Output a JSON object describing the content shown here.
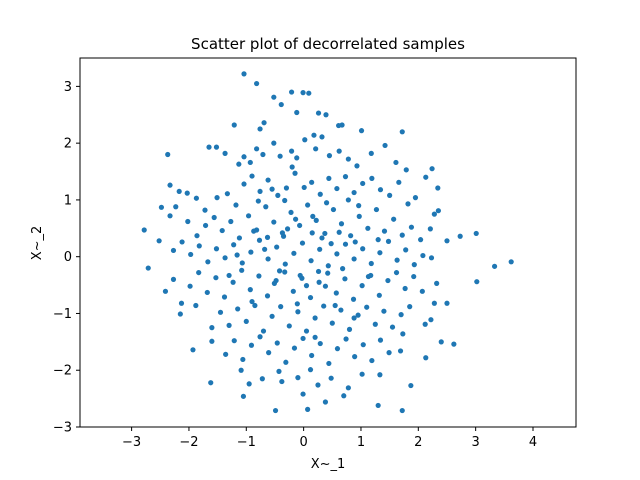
{
  "chart_data": {
    "type": "scatter",
    "title": "Scatter plot of decorrelated samples",
    "xlabel": "X~_1",
    "ylabel": "X~_2",
    "xlim": [
      -3.9,
      4.75
    ],
    "ylim": [
      -3.0,
      3.5
    ],
    "xticks": [
      -3,
      -2,
      -1,
      0,
      1,
      2,
      3,
      4
    ],
    "yticks": [
      -3,
      -2,
      -1,
      0,
      1,
      2,
      3
    ],
    "xtick_labels": [
      "−3",
      "−2",
      "−1",
      "0",
      "1",
      "2",
      "3",
      "4"
    ],
    "ytick_labels": [
      "−3",
      "−2",
      "−1",
      "0",
      "1",
      "2",
      "3"
    ],
    "grid": false,
    "marker_color": "#1f77b4",
    "series": [
      {
        "points": [
          [
            -1.04,
            3.22
          ],
          [
            -0.82,
            3.05
          ],
          [
            -0.52,
            2.81
          ],
          [
            -0.21,
            2.9
          ],
          [
            -0.01,
            2.89
          ],
          [
            0.09,
            2.88
          ],
          [
            -0.39,
            2.68
          ],
          [
            -0.12,
            2.54
          ],
          [
            0.26,
            2.53
          ],
          [
            0.39,
            2.5
          ],
          [
            0.67,
            2.32
          ],
          [
            0.61,
            2.31
          ],
          [
            -1.21,
            2.32
          ],
          [
            -0.69,
            2.36
          ],
          [
            -0.76,
            2.25
          ],
          [
            1.01,
            2.22
          ],
          [
            1.72,
            2.2
          ],
          [
            0.18,
            2.14
          ],
          [
            0.32,
            2.11
          ],
          [
            -1.65,
            1.93
          ],
          [
            -1.52,
            1.93
          ],
          [
            -1.37,
            1.82
          ],
          [
            -1.13,
            1.63
          ],
          [
            -1.04,
            1.76
          ],
          [
            -0.93,
            1.66
          ],
          [
            -0.82,
            1.9
          ],
          [
            -0.71,
            1.8
          ],
          [
            -0.52,
            2.0
          ],
          [
            -0.41,
            1.77
          ],
          [
            -0.21,
            1.86
          ],
          [
            -0.12,
            1.74
          ],
          [
            0.02,
            2.06
          ],
          [
            0.21,
            1.9
          ],
          [
            0.45,
            1.78
          ],
          [
            0.62,
            1.86
          ],
          [
            0.78,
            1.72
          ],
          [
            0.93,
            1.6
          ],
          [
            1.18,
            1.82
          ],
          [
            1.42,
            1.96
          ],
          [
            1.61,
            1.66
          ],
          [
            1.79,
            1.53
          ],
          [
            2.24,
            1.55
          ],
          [
            -2.37,
            1.8
          ],
          [
            -2.33,
            1.26
          ],
          [
            -2.17,
            1.15
          ],
          [
            -2.48,
            0.87
          ],
          [
            -2.23,
            0.88
          ],
          [
            -2.03,
            1.12
          ],
          [
            -1.87,
            1.03
          ],
          [
            -1.72,
            0.82
          ],
          [
            -1.51,
            1.04
          ],
          [
            -1.33,
            1.11
          ],
          [
            -1.18,
            0.91
          ],
          [
            -1.04,
            1.28
          ],
          [
            -0.9,
            1.42
          ],
          [
            -0.76,
            1.15
          ],
          [
            -0.62,
            1.35
          ],
          [
            -0.45,
            1.08
          ],
          [
            -0.3,
            1.21
          ],
          [
            -0.15,
            1.47
          ],
          [
            0.01,
            1.22
          ],
          [
            0.14,
            1.31
          ],
          [
            0.29,
            1.1
          ],
          [
            0.44,
            1.38
          ],
          [
            0.58,
            1.2
          ],
          [
            0.73,
            1.41
          ],
          [
            0.88,
            1.13
          ],
          [
            1.03,
            1.29
          ],
          [
            1.19,
            1.38
          ],
          [
            1.34,
            1.18
          ],
          [
            1.5,
            1.08
          ],
          [
            1.66,
            1.31
          ],
          [
            1.82,
            0.93
          ],
          [
            1.95,
            1.04
          ],
          [
            2.13,
            1.4
          ],
          [
            2.34,
            1.21
          ],
          [
            2.35,
            0.81
          ],
          [
            2.28,
            0.75
          ],
          [
            -2.33,
            0.72
          ],
          [
            -2.02,
            0.62
          ],
          [
            -1.86,
            0.37
          ],
          [
            -1.71,
            0.55
          ],
          [
            -1.56,
            0.69
          ],
          [
            -1.42,
            0.46
          ],
          [
            -1.27,
            0.62
          ],
          [
            -1.12,
            0.33
          ],
          [
            -0.96,
            0.72
          ],
          [
            -0.82,
            0.47
          ],
          [
            -0.66,
            0.88
          ],
          [
            -0.52,
            0.61
          ],
          [
            -0.37,
            0.42
          ],
          [
            -0.22,
            0.78
          ],
          [
            -0.07,
            0.55
          ],
          [
            0.07,
            0.91
          ],
          [
            0.22,
            0.64
          ],
          [
            0.37,
            0.41
          ],
          [
            0.52,
            0.83
          ],
          [
            0.66,
            0.58
          ],
          [
            0.82,
            0.37
          ],
          [
            0.97,
            0.71
          ],
          [
            1.12,
            0.5
          ],
          [
            1.27,
            0.83
          ],
          [
            1.41,
            0.45
          ],
          [
            1.57,
            0.66
          ],
          [
            1.72,
            0.38
          ],
          [
            1.88,
            0.52
          ],
          [
            2.04,
            0.3
          ],
          [
            2.21,
            0.49
          ],
          [
            -2.78,
            0.47
          ],
          [
            -2.52,
            0.28
          ],
          [
            -2.27,
            0.11
          ],
          [
            -2.12,
            0.26
          ],
          [
            -1.97,
            0.04
          ],
          [
            -1.82,
            0.19
          ],
          [
            -1.67,
            -0.09
          ],
          [
            -1.52,
            0.14
          ],
          [
            -1.37,
            -0.02
          ],
          [
            -1.22,
            0.21
          ],
          [
            -1.07,
            -0.11
          ],
          [
            -0.92,
            0.08
          ],
          [
            -0.77,
            0.29
          ],
          [
            -0.62,
            -0.04
          ],
          [
            -0.47,
            0.17
          ],
          [
            -0.32,
            -0.13
          ],
          [
            -0.17,
            0.06
          ],
          [
            -0.02,
            0.24
          ],
          [
            0.13,
            -0.07
          ],
          [
            0.28,
            0.13
          ],
          [
            0.43,
            -0.16
          ],
          [
            0.58,
            0.05
          ],
          [
            0.73,
            0.22
          ],
          [
            0.88,
            -0.04
          ],
          [
            1.03,
            0.14
          ],
          [
            1.18,
            -0.12
          ],
          [
            1.33,
            0.07
          ],
          [
            1.48,
            0.27
          ],
          [
            1.63,
            -0.06
          ],
          [
            1.78,
            0.12
          ],
          [
            1.93,
            -0.14
          ],
          [
            2.08,
            0.02
          ],
          [
            2.23,
            -0.02
          ],
          [
            2.5,
            0.28
          ],
          [
            2.73,
            0.36
          ],
          [
            3.01,
            0.41
          ],
          [
            -2.71,
            -0.2
          ],
          [
            -2.41,
            -0.61
          ],
          [
            -2.27,
            -0.4
          ],
          [
            -2.13,
            -0.82
          ],
          [
            -1.98,
            -0.52
          ],
          [
            -1.83,
            -0.28
          ],
          [
            -1.68,
            -0.63
          ],
          [
            -1.53,
            -0.37
          ],
          [
            -1.38,
            -0.71
          ],
          [
            -1.23,
            -0.45
          ],
          [
            -1.08,
            -0.24
          ],
          [
            -0.93,
            -0.58
          ],
          [
            -0.78,
            -0.34
          ],
          [
            -0.63,
            -0.69
          ],
          [
            -0.48,
            -0.42
          ],
          [
            -0.33,
            -0.27
          ],
          [
            -0.18,
            -0.61
          ],
          [
            -0.03,
            -0.38
          ],
          [
            0.12,
            -0.72
          ],
          [
            0.27,
            -0.45
          ],
          [
            0.42,
            -0.29
          ],
          [
            0.57,
            -0.64
          ],
          [
            0.72,
            -0.39
          ],
          [
            0.87,
            -0.75
          ],
          [
            1.02,
            -0.51
          ],
          [
            1.17,
            -0.33
          ],
          [
            1.32,
            -0.68
          ],
          [
            1.47,
            -0.42
          ],
          [
            1.62,
            -0.28
          ],
          [
            1.77,
            -0.56
          ],
          [
            1.92,
            -0.35
          ],
          [
            2.07,
            -0.61
          ],
          [
            2.32,
            -0.47
          ],
          [
            3.02,
            -0.44
          ],
          [
            3.33,
            -0.17
          ],
          [
            3.62,
            -0.09
          ],
          [
            -2.15,
            -1.01
          ],
          [
            -1.88,
            -0.86
          ],
          [
            -1.6,
            -1.25
          ],
          [
            -1.45,
            -0.98
          ],
          [
            -1.3,
            -1.21
          ],
          [
            -1.15,
            -0.92
          ],
          [
            -1.0,
            -1.14
          ],
          [
            -0.85,
            -0.86
          ],
          [
            -0.7,
            -1.31
          ],
          [
            -0.55,
            -1.05
          ],
          [
            -0.4,
            -0.88
          ],
          [
            -0.25,
            -1.22
          ],
          [
            -0.1,
            -0.97
          ],
          [
            0.05,
            -1.31
          ],
          [
            0.2,
            -1.08
          ],
          [
            0.35,
            -0.87
          ],
          [
            0.5,
            -1.17
          ],
          [
            0.65,
            -0.94
          ],
          [
            0.8,
            -1.28
          ],
          [
            0.95,
            -1.03
          ],
          [
            1.1,
            -0.89
          ],
          [
            1.25,
            -1.19
          ],
          [
            1.4,
            -0.96
          ],
          [
            1.55,
            -1.24
          ],
          [
            1.7,
            -1.02
          ],
          [
            1.85,
            -0.88
          ],
          [
            2.12,
            -1.19
          ],
          [
            2.28,
            -0.82
          ],
          [
            2.5,
            -0.82
          ],
          [
            2.22,
            -1.11
          ],
          [
            -1.93,
            -1.64
          ],
          [
            -1.6,
            -1.49
          ],
          [
            -1.36,
            -1.72
          ],
          [
            -1.21,
            -1.48
          ],
          [
            -1.06,
            -1.81
          ],
          [
            -0.91,
            -1.56
          ],
          [
            -0.76,
            -1.41
          ],
          [
            -0.61,
            -1.69
          ],
          [
            -0.46,
            -1.52
          ],
          [
            -0.31,
            -1.86
          ],
          [
            -0.16,
            -1.61
          ],
          [
            -0.01,
            -1.44
          ],
          [
            0.14,
            -1.74
          ],
          [
            0.29,
            -1.53
          ],
          [
            0.44,
            -1.88
          ],
          [
            0.59,
            -1.62
          ],
          [
            0.74,
            -1.45
          ],
          [
            0.89,
            -1.76
          ],
          [
            1.04,
            -1.55
          ],
          [
            1.19,
            -1.83
          ],
          [
            1.34,
            -1.47
          ],
          [
            1.49,
            -1.69
          ],
          [
            1.69,
            -1.66
          ],
          [
            1.73,
            -1.36
          ],
          [
            2.13,
            -1.78
          ],
          [
            2.4,
            -1.5
          ],
          [
            2.62,
            -1.54
          ],
          [
            -1.62,
            -2.22
          ],
          [
            -1.09,
            -2.0
          ],
          [
            -0.95,
            -2.24
          ],
          [
            -0.72,
            -2.15
          ],
          [
            -0.43,
            -2.02
          ],
          [
            -0.38,
            -2.2
          ],
          [
            -0.1,
            -2.13
          ],
          [
            0.12,
            -1.99
          ],
          [
            0.25,
            -2.26
          ],
          [
            0.48,
            -2.14
          ],
          [
            0.78,
            -2.31
          ],
          [
            1.02,
            -2.07
          ],
          [
            1.33,
            -2.08
          ],
          [
            1.87,
            -2.27
          ],
          [
            -1.05,
            -2.46
          ],
          [
            0.7,
            -2.45
          ],
          [
            0.38,
            -2.56
          ],
          [
            -0.49,
            -2.71
          ],
          [
            0.07,
            -2.69
          ],
          [
            -0.01,
            -2.42
          ],
          [
            1.3,
            -2.62
          ],
          [
            1.72,
            -2.71
          ],
          [
            -0.35,
            0.36
          ],
          [
            0.32,
            0.33
          ],
          [
            -0.63,
            0.34
          ],
          [
            0.15,
            0.42
          ],
          [
            -0.06,
            -0.33
          ],
          [
            0.26,
            -0.26
          ],
          [
            -0.42,
            -0.25
          ],
          [
            0.48,
            0.23
          ],
          [
            -0.28,
            0.49
          ],
          [
            0.38,
            -0.52
          ],
          [
            -0.14,
            0.66
          ],
          [
            0.05,
            -0.51
          ],
          [
            0.62,
            0.43
          ],
          [
            -0.51,
            -0.47
          ],
          [
            0.16,
            0.71
          ],
          [
            -0.87,
            0.45
          ],
          [
            0.9,
            0.26
          ],
          [
            -0.11,
            -0.83
          ],
          [
            0.68,
            -0.21
          ],
          [
            -0.68,
            0.13
          ],
          [
            0.4,
            0.95
          ],
          [
            -0.33,
            0.99
          ],
          [
            0.55,
            -0.86
          ],
          [
            -0.9,
            -0.79
          ],
          [
            0.96,
            0.9
          ],
          [
            -0.55,
            1.19
          ],
          [
            1.13,
            -0.35
          ],
          [
            -1.16,
            0.03
          ],
          [
            0.2,
            -1.42
          ],
          [
            -0.2,
            1.58
          ],
          [
            1.3,
            0.3
          ],
          [
            -1.3,
            -0.33
          ],
          [
            0.78,
            1.0
          ],
          [
            -0.79,
            0.98
          ],
          [
            0.88,
            -1.08
          ]
        ]
      }
    ]
  }
}
